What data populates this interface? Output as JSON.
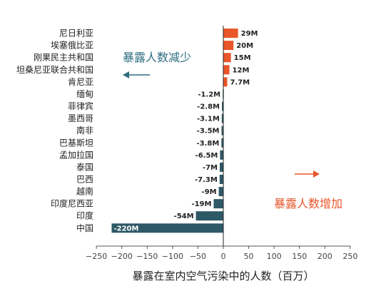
{
  "chart_data": {
    "type": "bar",
    "orientation": "horizontal",
    "xlabel": "暴露在室内空气污染中的人数（百万）",
    "xlim": [
      -250,
      250
    ],
    "xticks": [
      "-250",
      "-200",
      "-150",
      "-100",
      "-50",
      "0",
      "50",
      "100",
      "150",
      "200",
      "250"
    ],
    "grid": false,
    "categories": [
      "尼日利亚",
      "埃塞俄比亚",
      "刚果民主共和国",
      "坦桑尼亚联合共和国",
      "肯尼亚",
      "缅甸",
      "菲律宾",
      "墨西哥",
      "南非",
      "巴基斯坦",
      "孟加拉国",
      "泰国",
      "巴西",
      "越南",
      "印度尼西亚",
      "印度",
      "中国"
    ],
    "values": [
      29,
      20,
      15,
      12,
      7.7,
      -1.2,
      -2.8,
      -3.1,
      -3.5,
      -3.8,
      -6.5,
      -7,
      -7.3,
      -9,
      -19,
      -54,
      -220
    ],
    "value_labels": [
      "29M",
      "20M",
      "15M",
      "12M",
      "7.7M",
      "-1.2M",
      "-2.8M",
      "-3.1M",
      "-3.5M",
      "-3.8M",
      "-6.5M",
      "-7M",
      "-7.3M",
      "-9M",
      "-19M",
      "-54M",
      "-220M"
    ],
    "annotations": {
      "decrease": "暴露人数减少",
      "increase": "暴露人数增加"
    },
    "colors": {
      "increase": "#e8562a",
      "decrease": "#2d5866",
      "decrease_text": "#2f6e80"
    }
  }
}
